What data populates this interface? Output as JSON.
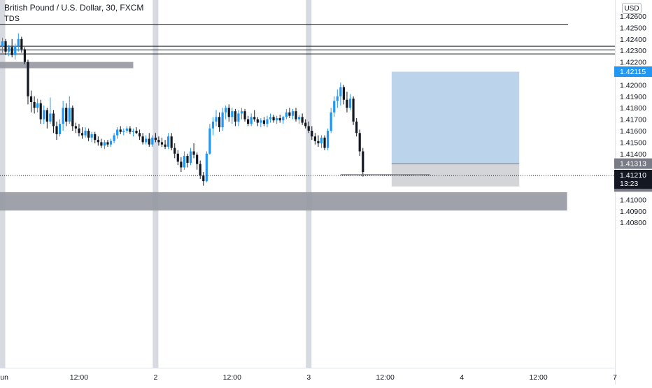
{
  "header": {
    "symbol": "British Pound / U.S. Dollar, 30, FXCM",
    "indicator": "TDS",
    "currency": "USD"
  },
  "colors": {
    "up": "#2196f3",
    "down": "#131722",
    "zone": "#9598a1",
    "session": "#d1d4dc",
    "target": "#bbd4ec",
    "stop": "#d4d5d9"
  },
  "chart_data": {
    "type": "candlestick",
    "symbol": "British Pound / U.S. Dollar",
    "interval": "30",
    "ylim": [
      1.4077,
      1.4266
    ],
    "yticks": [
      "1.42600",
      "1.42500",
      "1.42400",
      "1.42300",
      "1.42200",
      "1.42000",
      "1.41900",
      "1.41800",
      "1.41700",
      "1.41600",
      "1.41500",
      "1.41400",
      "1.41000",
      "1.40900",
      "1.40800"
    ],
    "xticks": [
      {
        "label": "Jun",
        "bar": 0
      },
      {
        "label": "12:00",
        "bar": 24
      },
      {
        "label": "2",
        "bar": 48
      },
      {
        "label": "12:00",
        "bar": 72
      },
      {
        "label": "3",
        "bar": 96
      },
      {
        "label": "12:00",
        "bar": 120
      },
      {
        "label": "4",
        "bar": 144
      },
      {
        "label": "12:00",
        "bar": 168
      },
      {
        "label": "7",
        "bar": 192
      }
    ],
    "candles": [
      [
        1.4234,
        1.4241,
        1.4228,
        1.4238
      ],
      [
        1.4238,
        1.424,
        1.4226,
        1.4229
      ],
      [
        1.4229,
        1.4235,
        1.4225,
        1.4233
      ],
      [
        1.4233,
        1.424,
        1.4224,
        1.4226
      ],
      [
        1.4226,
        1.4236,
        1.4222,
        1.4234
      ],
      [
        1.4234,
        1.4245,
        1.4229,
        1.424
      ],
      [
        1.424,
        1.4242,
        1.4228,
        1.4231
      ],
      [
        1.4231,
        1.4233,
        1.4218,
        1.422
      ],
      [
        1.422,
        1.4222,
        1.4183,
        1.419
      ],
      [
        1.419,
        1.4195,
        1.4176,
        1.4185
      ],
      [
        1.4185,
        1.419,
        1.4175,
        1.418
      ],
      [
        1.418,
        1.4188,
        1.4176,
        1.4184
      ],
      [
        1.4184,
        1.4187,
        1.4166,
        1.417
      ],
      [
        1.417,
        1.4182,
        1.4166,
        1.4178
      ],
      [
        1.4178,
        1.418,
        1.4162,
        1.4168
      ],
      [
        1.4168,
        1.4189,
        1.4166,
        1.4175
      ],
      [
        1.4175,
        1.4178,
        1.4158,
        1.4164
      ],
      [
        1.4164,
        1.4168,
        1.4152,
        1.4157
      ],
      [
        1.4157,
        1.417,
        1.4155,
        1.4166
      ],
      [
        1.4166,
        1.4186,
        1.416,
        1.418
      ],
      [
        1.418,
        1.4184,
        1.4164,
        1.4168
      ],
      [
        1.4168,
        1.419,
        1.4166,
        1.418
      ],
      [
        1.418,
        1.4182,
        1.416,
        1.4164
      ],
      [
        1.4164,
        1.4167,
        1.4158,
        1.4162
      ],
      [
        1.4162,
        1.4166,
        1.4155,
        1.4158
      ],
      [
        1.4158,
        1.4163,
        1.4153,
        1.4156
      ],
      [
        1.4156,
        1.4163,
        1.4154,
        1.416
      ],
      [
        1.416,
        1.4162,
        1.4151,
        1.4154
      ],
      [
        1.4154,
        1.4159,
        1.415,
        1.4157
      ],
      [
        1.4157,
        1.4159,
        1.4149,
        1.4152
      ],
      [
        1.4152,
        1.4155,
        1.4147,
        1.415
      ],
      [
        1.415,
        1.4153,
        1.4145,
        1.4147
      ],
      [
        1.4147,
        1.4152,
        1.4144,
        1.415
      ],
      [
        1.415,
        1.4152,
        1.4146,
        1.4148
      ],
      [
        1.4148,
        1.4153,
        1.4146,
        1.4151
      ],
      [
        1.4151,
        1.4158,
        1.4149,
        1.4156
      ],
      [
        1.4156,
        1.4163,
        1.4153,
        1.4161
      ],
      [
        1.4161,
        1.4164,
        1.4157,
        1.4159
      ],
      [
        1.4159,
        1.4162,
        1.4156,
        1.416
      ],
      [
        1.416,
        1.4164,
        1.4158,
        1.4162
      ],
      [
        1.4162,
        1.4164,
        1.4157,
        1.4159
      ],
      [
        1.4159,
        1.4162,
        1.4155,
        1.416
      ],
      [
        1.416,
        1.4163,
        1.4157,
        1.4158
      ],
      [
        1.4158,
        1.4161,
        1.4152,
        1.4155
      ],
      [
        1.4155,
        1.4158,
        1.4148,
        1.415
      ],
      [
        1.415,
        1.4156,
        1.4148,
        1.4153
      ],
      [
        1.4153,
        1.4158,
        1.4146,
        1.4148
      ],
      [
        1.4148,
        1.4156,
        1.4146,
        1.4154
      ],
      [
        1.4154,
        1.4158,
        1.415,
        1.4152
      ],
      [
        1.4152,
        1.4155,
        1.4147,
        1.415
      ],
      [
        1.415,
        1.4154,
        1.4146,
        1.4148
      ],
      [
        1.4148,
        1.4152,
        1.4144,
        1.4146
      ],
      [
        1.4146,
        1.4158,
        1.4144,
        1.4155
      ],
      [
        1.4155,
        1.4158,
        1.4143,
        1.4145
      ],
      [
        1.4145,
        1.4149,
        1.4136,
        1.414
      ],
      [
        1.414,
        1.4143,
        1.413,
        1.4133
      ],
      [
        1.4133,
        1.4137,
        1.4124,
        1.4128
      ],
      [
        1.4128,
        1.4142,
        1.4126,
        1.4138
      ],
      [
        1.4138,
        1.414,
        1.4128,
        1.4132
      ],
      [
        1.4132,
        1.4145,
        1.413,
        1.4142
      ],
      [
        1.4142,
        1.4149,
        1.4136,
        1.4139
      ],
      [
        1.4139,
        1.4141,
        1.4126,
        1.4131
      ],
      [
        1.4131,
        1.4134,
        1.4118,
        1.4121
      ],
      [
        1.4121,
        1.4124,
        1.4112,
        1.4116
      ],
      [
        1.4116,
        1.4142,
        1.4115,
        1.414
      ],
      [
        1.414,
        1.4166,
        1.4139,
        1.4162
      ],
      [
        1.4162,
        1.4172,
        1.4156,
        1.4168
      ],
      [
        1.4168,
        1.4178,
        1.4164,
        1.4172
      ],
      [
        1.4172,
        1.4176,
        1.4159,
        1.4163
      ],
      [
        1.4163,
        1.418,
        1.416,
        1.4176
      ],
      [
        1.4176,
        1.4182,
        1.417,
        1.418
      ],
      [
        1.418,
        1.4183,
        1.4168,
        1.4172
      ],
      [
        1.4172,
        1.418,
        1.4166,
        1.4177
      ],
      [
        1.4177,
        1.4179,
        1.4164,
        1.4168
      ],
      [
        1.4168,
        1.4178,
        1.4164,
        1.4175
      ],
      [
        1.4175,
        1.418,
        1.417,
        1.4177
      ],
      [
        1.4177,
        1.4179,
        1.4168,
        1.417
      ],
      [
        1.417,
        1.4173,
        1.4164,
        1.4166
      ],
      [
        1.4166,
        1.4175,
        1.4164,
        1.4172
      ],
      [
        1.4172,
        1.4178,
        1.4168,
        1.417
      ],
      [
        1.417,
        1.4172,
        1.4164,
        1.4167
      ],
      [
        1.4167,
        1.4171,
        1.4163,
        1.4169
      ],
      [
        1.4169,
        1.4172,
        1.4164,
        1.4166
      ],
      [
        1.4166,
        1.4173,
        1.4163,
        1.417
      ],
      [
        1.417,
        1.4175,
        1.4167,
        1.4172
      ],
      [
        1.4172,
        1.4174,
        1.4167,
        1.4169
      ],
      [
        1.4169,
        1.4173,
        1.4166,
        1.4171
      ],
      [
        1.4171,
        1.4174,
        1.4167,
        1.4169
      ],
      [
        1.4169,
        1.4173,
        1.4166,
        1.4172
      ],
      [
        1.4172,
        1.4179,
        1.417,
        1.4176
      ],
      [
        1.4176,
        1.418,
        1.4171,
        1.4173
      ],
      [
        1.4173,
        1.4179,
        1.417,
        1.4177
      ],
      [
        1.4177,
        1.418,
        1.4168,
        1.417
      ],
      [
        1.417,
        1.4174,
        1.4166,
        1.4172
      ],
      [
        1.4172,
        1.4175,
        1.4165,
        1.4167
      ],
      [
        1.4167,
        1.417,
        1.4162,
        1.4164
      ],
      [
        1.4164,
        1.4168,
        1.4158,
        1.416
      ],
      [
        1.416,
        1.4164,
        1.4152,
        1.4155
      ],
      [
        1.4155,
        1.4158,
        1.4148,
        1.4151
      ],
      [
        1.4151,
        1.4156,
        1.4146,
        1.4149
      ],
      [
        1.4149,
        1.4156,
        1.4145,
        1.4154
      ],
      [
        1.4154,
        1.4156,
        1.4143,
        1.4145
      ],
      [
        1.4145,
        1.4162,
        1.4143,
        1.416
      ],
      [
        1.416,
        1.418,
        1.4158,
        1.4176
      ],
      [
        1.4176,
        1.419,
        1.4172,
        1.4186
      ],
      [
        1.4186,
        1.4196,
        1.418,
        1.419
      ],
      [
        1.419,
        1.4202,
        1.4182,
        1.4198
      ],
      [
        1.4198,
        1.42,
        1.4183,
        1.4187
      ],
      [
        1.4187,
        1.4194,
        1.4176,
        1.418
      ],
      [
        1.418,
        1.4192,
        1.4178,
        1.4188
      ],
      [
        1.4188,
        1.419,
        1.4165,
        1.4168
      ],
      [
        1.4168,
        1.4171,
        1.4155,
        1.4158
      ],
      [
        1.4158,
        1.4161,
        1.4138,
        1.4142
      ],
      [
        1.4142,
        1.4145,
        1.412,
        1.4124
      ]
    ],
    "levels": [
      {
        "type": "horizontal-line",
        "price": 1.42524
      },
      {
        "type": "horizontal-line",
        "price": 1.42337
      },
      {
        "type": "horizontal-line",
        "price": 1.42305
      },
      {
        "type": "horizontal-line",
        "price": 1.4227
      }
    ],
    "zones": [
      {
        "type": "supply-zone",
        "from_bar": -2,
        "to_bar": 41,
        "price_top": 1.422,
        "price_bottom": 1.42145
      },
      {
        "type": "demand-zone",
        "from_bar": -2,
        "to_bar": 177,
        "price_top": 1.41064,
        "price_bottom": 1.40904
      }
    ],
    "sessions": [
      {
        "label": "Jun",
        "bar": 0
      },
      {
        "label": "2",
        "bar": 48
      },
      {
        "label": "3",
        "bar": 96
      }
    ],
    "position": {
      "type": "long",
      "target": "1.42115",
      "entry": "1.41313",
      "stop": "1.41114",
      "target_price": 1.42115,
      "entry_price": 1.41313,
      "stop_price": 1.41114,
      "from_bar": 122,
      "to_bar": 162
    },
    "current_price": {
      "price": "1.41210",
      "value": 1.4121,
      "countdown": "13:23"
    },
    "price_ray": {
      "from_bar": 106,
      "to_bar": 134,
      "price": 1.41216
    }
  }
}
